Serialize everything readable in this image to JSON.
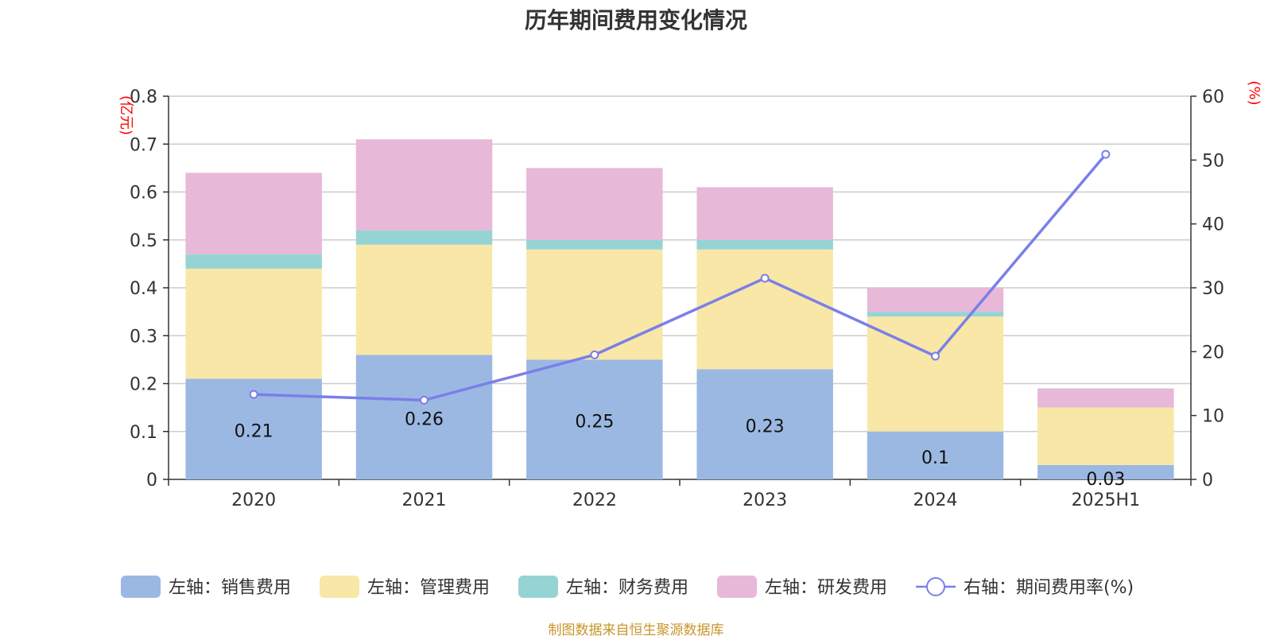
{
  "chart_data": {
    "type": "bar",
    "title": "历年期间费用变化情况",
    "categories": [
      "2020",
      "2021",
      "2022",
      "2023",
      "2024",
      "2025H1"
    ],
    "left_axis": {
      "unit": "(亿元)",
      "ylim": [
        0,
        0.8
      ],
      "ticks": [
        "0",
        "0.1",
        "0.2",
        "0.3",
        "0.4",
        "0.5",
        "0.6",
        "0.7",
        "0.8"
      ]
    },
    "right_axis": {
      "unit": "(%)",
      "ylim": [
        0,
        60
      ],
      "ticks": [
        "0",
        "10",
        "20",
        "30",
        "40",
        "50",
        "60"
      ]
    },
    "series": [
      {
        "name": "左轴：销售费用",
        "stack": true,
        "axis": "left",
        "color": "#9bb8e2",
        "values": [
          0.21,
          0.26,
          0.25,
          0.23,
          0.1,
          0.03
        ],
        "labels": [
          "0.21",
          "0.26",
          "0.25",
          "0.23",
          "0.1",
          "0.03"
        ]
      },
      {
        "name": "左轴：管理费用",
        "stack": true,
        "axis": "left",
        "color": "#f8e7a6",
        "values": [
          0.23,
          0.23,
          0.23,
          0.25,
          0.24,
          0.12
        ]
      },
      {
        "name": "左轴：财务费用",
        "stack": true,
        "axis": "left",
        "color": "#96d4d4",
        "values": [
          0.03,
          0.03,
          0.02,
          0.02,
          0.01,
          0.0
        ]
      },
      {
        "name": "左轴：研发费用",
        "stack": true,
        "axis": "left",
        "color": "#e8b8d8",
        "values": [
          0.17,
          0.19,
          0.15,
          0.11,
          0.05,
          0.04
        ]
      },
      {
        "name": "右轴：期间费用率(%)",
        "type": "line",
        "axis": "right",
        "color": "#7b7fe8",
        "values": [
          13.3,
          12.4,
          19.5,
          31.5,
          19.3,
          50.9
        ]
      }
    ],
    "grid": true,
    "legend": "bottom",
    "source": "制图数据来自恒生聚源数据库"
  }
}
